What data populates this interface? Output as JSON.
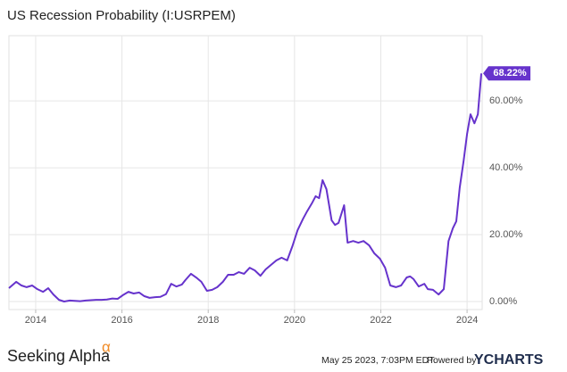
{
  "chart_data": {
    "type": "line",
    "title": "US Recession Probability (I:USRPEM)",
    "x": [
      2013.38,
      2013.55,
      2013.67,
      2013.79,
      2013.92,
      2014.04,
      2014.17,
      2014.29,
      2014.41,
      2014.54,
      2014.66,
      2014.79,
      2014.91,
      2015.03,
      2015.16,
      2015.28,
      2015.4,
      2015.53,
      2015.65,
      2015.78,
      2015.9,
      2016.02,
      2016.15,
      2016.27,
      2016.4,
      2016.52,
      2016.64,
      2016.77,
      2016.89,
      2017.02,
      2017.14,
      2017.26,
      2017.39,
      2017.47,
      2017.6,
      2017.72,
      2017.84,
      2017.97,
      2018.09,
      2018.21,
      2018.34,
      2018.46,
      2018.59,
      2018.71,
      2018.83,
      2018.96,
      2019.08,
      2019.21,
      2019.33,
      2019.45,
      2019.58,
      2019.7,
      2019.83,
      2019.95,
      2020.07,
      2020.2,
      2020.28,
      2020.4,
      2020.49,
      2020.57,
      2020.65,
      2020.74,
      2020.86,
      2020.94,
      2021.02,
      2021.15,
      2021.23,
      2021.36,
      2021.48,
      2021.6,
      2021.73,
      2021.85,
      2021.98,
      2022.1,
      2022.22,
      2022.35,
      2022.47,
      2022.6,
      2022.68,
      2022.76,
      2022.88,
      2023.01,
      2023.09,
      2023.21,
      2023.34,
      2023.46,
      2023.57,
      2023.67,
      2023.75,
      2023.83,
      2023.92,
      2024.0,
      2024.08,
      2024.17,
      2024.25,
      2024.33
    ],
    "series": [
      {
        "name": "US Recession Probability",
        "color": "#6633cc",
        "values": [
          4.0,
          5.9,
          4.8,
          4.3,
          4.8,
          3.7,
          2.9,
          4.0,
          2.1,
          0.5,
          0.0,
          0.3,
          0.2,
          0.1,
          0.3,
          0.4,
          0.5,
          0.5,
          0.6,
          0.9,
          0.8,
          1.9,
          2.9,
          2.4,
          2.7,
          1.6,
          1.1,
          1.3,
          1.4,
          2.2,
          5.3,
          4.5,
          5.1,
          6.4,
          8.3,
          7.2,
          5.9,
          3.2,
          3.5,
          4.3,
          5.9,
          8.0,
          8.0,
          8.8,
          8.3,
          10.1,
          9.3,
          7.7,
          9.6,
          10.9,
          12.3,
          13.1,
          12.3,
          16.5,
          21.3,
          24.8,
          26.7,
          29.3,
          31.5,
          30.9,
          36.3,
          33.6,
          24.3,
          22.9,
          23.5,
          28.8,
          17.6,
          18.1,
          17.6,
          18.1,
          16.8,
          14.4,
          12.8,
          10.1,
          4.8,
          4.3,
          4.8,
          7.2,
          7.5,
          6.7,
          4.5,
          5.3,
          3.7,
          3.5,
          2.1,
          3.7,
          18.1,
          21.9,
          24.0,
          34.1,
          42.1,
          50.1,
          56.0,
          53.3,
          56.0,
          68.22
        ],
        "last_value_label": "68.22%"
      }
    ],
    "xlim": [
      2013.38,
      2024.35
    ],
    "xticks": [
      2014,
      2016,
      2018,
      2020,
      2022,
      2024
    ],
    "ylim": [
      -2.4,
      79.5
    ],
    "yticks": [
      {
        "value": 0,
        "label": "0.00%"
      },
      {
        "value": 20,
        "label": "20.00%"
      },
      {
        "value": 40,
        "label": "40.00%"
      },
      {
        "value": 60,
        "label": "60.00%"
      }
    ],
    "grid": true,
    "footer": {
      "brand": "Seeking Alpha",
      "brand_mark": "α",
      "timestamp": "May 25 2023, 7:03PM EDT.",
      "powered_by": "Powered by",
      "logo": "YCHARTS"
    }
  }
}
